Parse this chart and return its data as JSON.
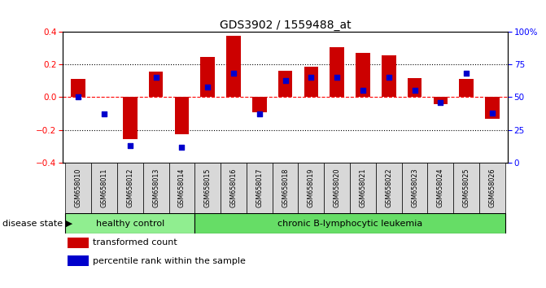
{
  "title": "GDS3902 / 1559488_at",
  "samples": [
    "GSM658010",
    "GSM658011",
    "GSM658012",
    "GSM658013",
    "GSM658014",
    "GSM658015",
    "GSM658016",
    "GSM658017",
    "GSM658018",
    "GSM658019",
    "GSM658020",
    "GSM658021",
    "GSM658022",
    "GSM658023",
    "GSM658024",
    "GSM658025",
    "GSM658026"
  ],
  "red_values": [
    0.11,
    0.0,
    -0.255,
    0.155,
    -0.225,
    0.245,
    0.375,
    -0.09,
    0.16,
    0.185,
    0.305,
    0.27,
    0.255,
    0.115,
    -0.04,
    0.11,
    -0.13
  ],
  "blue_pct": [
    50,
    37,
    13,
    65,
    12,
    58,
    68,
    37,
    63,
    65,
    65,
    55,
    65,
    55,
    46,
    68,
    38
  ],
  "healthy_count": 5,
  "leukemia_count": 12,
  "bar_color": "#CC0000",
  "dot_color": "#0000CC",
  "healthy_color": "#90EE90",
  "leukemia_color": "#66DD66",
  "label_bar": "transformed count",
  "label_dot": "percentile rank within the sample",
  "disease_label": "disease state",
  "healthy_label": "healthy control",
  "leukemia_label": "chronic B-lymphocytic leukemia"
}
